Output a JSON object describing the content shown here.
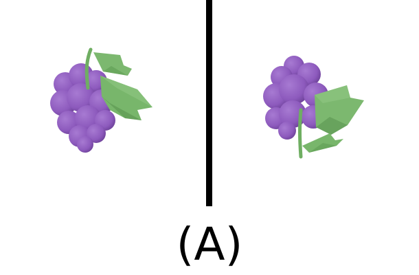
{
  "caption": {
    "label": "(A)"
  },
  "panels": [
    {
      "icon": "grapes-icon",
      "view": "left"
    },
    {
      "icon": "grapes-icon",
      "view": "right"
    }
  ],
  "colors": {
    "grape_light": "#9a6bc8",
    "grape_mid": "#8855b8",
    "grape_dark": "#5a3080",
    "leaf_light": "#86c07a",
    "leaf_mid": "#6fae62",
    "leaf_dark": "#4f8a46",
    "divider": "#000000",
    "background": "#ffffff"
  }
}
